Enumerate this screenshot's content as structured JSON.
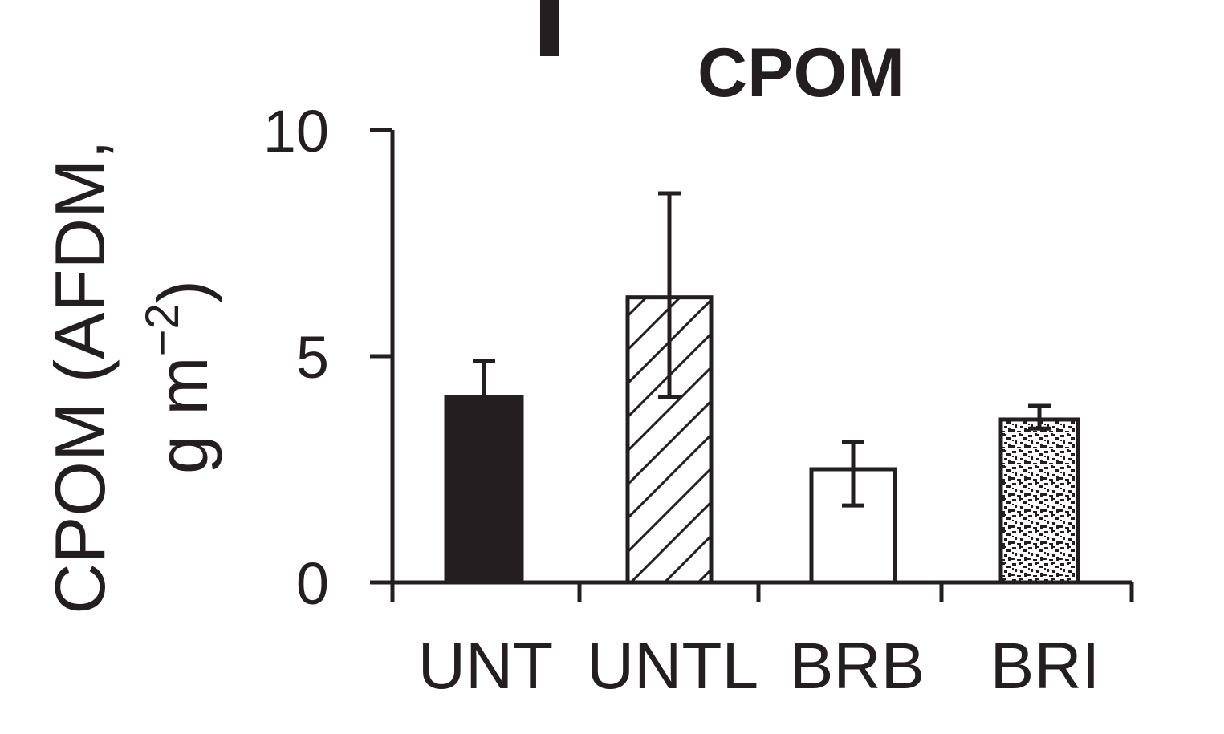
{
  "chart_data": {
    "type": "bar",
    "title": "CPOM",
    "ylabel": {
      "line1": "CPOM (AFDM,",
      "line2_prefix": "g m",
      "line2_exponent": "−2",
      "line2_suffix": ")"
    },
    "ylim": [
      0,
      10
    ],
    "yticks": [
      "0",
      "5",
      "10"
    ],
    "categories": [
      "UNT",
      "UNTL",
      "BRB",
      "BRI"
    ],
    "values": [
      4.1,
      6.3,
      2.5,
      3.6
    ],
    "error_low": [
      3.4,
      4.1,
      1.7,
      3.4
    ],
    "error_high": [
      4.9,
      8.6,
      3.1,
      3.9
    ],
    "fills": [
      "solid-black",
      "diagonal-hatch",
      "white",
      "stipple"
    ],
    "grid": false,
    "legend": "none",
    "panel_marker": "|"
  },
  "colors": {
    "ink": "#231f20",
    "background": "#ffffff"
  }
}
